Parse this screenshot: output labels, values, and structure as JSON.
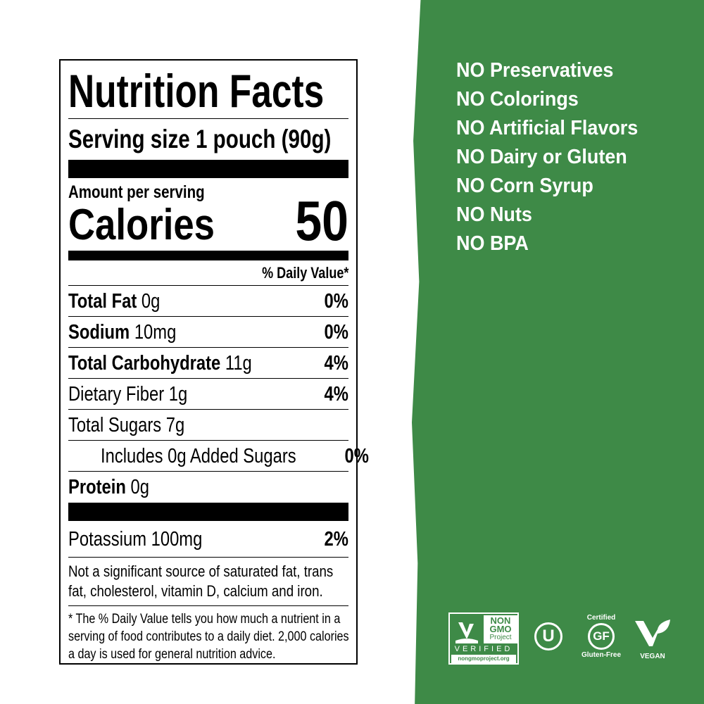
{
  "label": {
    "title": "Nutrition Facts",
    "serving": "Serving size  1 pouch (90g)",
    "amount_per_serving": "Amount per serving",
    "calories_label": "Calories",
    "calories_value": "50",
    "dv_header": "% Daily Value*",
    "rows": [
      {
        "name": "Total Fat",
        "amount": "0g",
        "dv": "0%",
        "bold": true
      },
      {
        "name": "Sodium",
        "amount": "10mg",
        "dv": "0%",
        "bold": true
      },
      {
        "name": "Total Carbohydrate",
        "amount": "11g",
        "dv": "4%",
        "bold": true
      },
      {
        "name": "Dietary Fiber",
        "amount": "1g",
        "dv": "4%",
        "bold": false
      },
      {
        "name": "Total Sugars",
        "amount": "7g",
        "dv": "",
        "bold": false
      },
      {
        "name": "Includes 0g Added Sugars",
        "amount": "",
        "dv": "0%",
        "bold": false
      },
      {
        "name": "Protein",
        "amount": "0g",
        "dv": "",
        "bold": true
      },
      {
        "name": "Potassium",
        "amount": "100mg",
        "dv": "2%",
        "bold": false
      }
    ],
    "footnote": "Not a significant source of saturated fat, trans fat, cholesterol, vitamin D, calcium and iron.",
    "dv_note": "* The % Daily Value tells you how much a nutrient in a serving of food contributes to a daily diet. 2,000 calories a day is used for general nutrition advice."
  },
  "claims": [
    "NO Preservatives",
    "NO Colorings",
    "NO Artificial Flavors",
    "NO Dairy or Gluten",
    "NO Corn Syrup",
    "NO Nuts",
    "NO BPA"
  ],
  "badges": {
    "nongmo": {
      "line1": "NON",
      "line2": "GMO",
      "line3": "Project",
      "verified": "VERIFIED",
      "url": "nongmoproject.org"
    },
    "kosher": "U",
    "gf": {
      "top": "Certified",
      "mark": "GF",
      "bottom": "Gluten-Free"
    },
    "vegan": "VEGAN"
  },
  "colors": {
    "green": "#3e8a47"
  }
}
